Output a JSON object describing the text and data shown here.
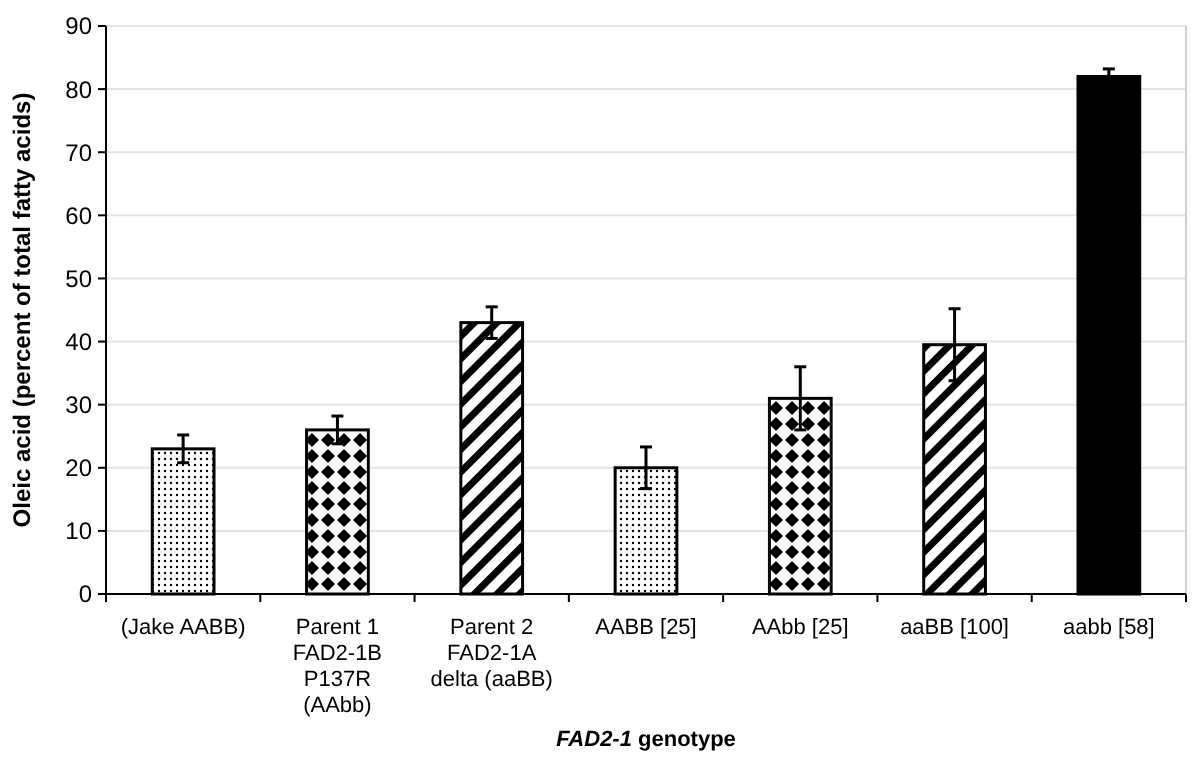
{
  "chart_data": {
    "type": "bar",
    "xlabel": "FAD2-1 genotype",
    "ylabel": "Oleic acid (percent of total fatty acids)",
    "categories": [
      "(Jake AABB)",
      "Parent 1\nFAD2-1B\nP137R\n(AAbb)",
      "Parent 2\nFAD2-1A\ndelta (aaBB)",
      "AABB [25]",
      "AAbb [25]",
      "aaBB [100]",
      "aabb [58]"
    ],
    "values": [
      23,
      26,
      43,
      20,
      31,
      39.5,
      82
    ],
    "errors": [
      2.2,
      2.2,
      2.5,
      3.3,
      5,
      5.7,
      1.2
    ],
    "colors": [
      "#000000",
      "#000000",
      "#000000",
      "#000000",
      "#000000",
      "#000000",
      "#000000"
    ],
    "ylim": [
      0,
      90
    ],
    "yticks": [
      0,
      10,
      20,
      30,
      40,
      50,
      60,
      70,
      80,
      90
    ],
    "grid": "y"
  }
}
